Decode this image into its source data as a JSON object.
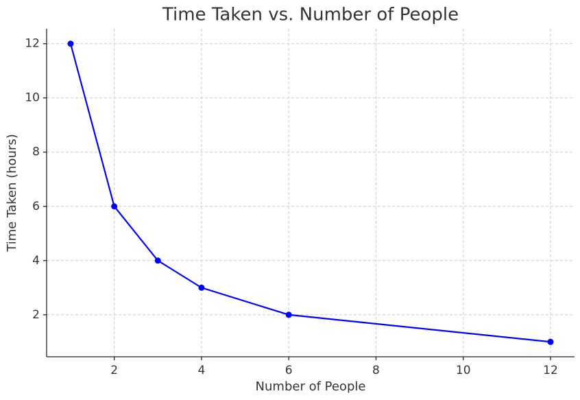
{
  "chart_data": {
    "type": "line",
    "title": "Time Taken vs. Number of People",
    "xlabel": "Number of People",
    "ylabel": "Time Taken (hours)",
    "x": [
      1,
      2,
      3,
      4,
      6,
      12
    ],
    "series": [
      {
        "name": "Time Taken",
        "color": "#0000ff",
        "values": [
          12,
          6,
          4,
          3,
          2,
          1
        ]
      }
    ],
    "xlim": [
      0.45,
      12.55
    ],
    "ylim": [
      0.45,
      12.55
    ],
    "xticks": [
      2,
      4,
      6,
      8,
      10,
      12
    ],
    "yticks": [
      2,
      4,
      6,
      8,
      10,
      12
    ],
    "grid": true
  }
}
